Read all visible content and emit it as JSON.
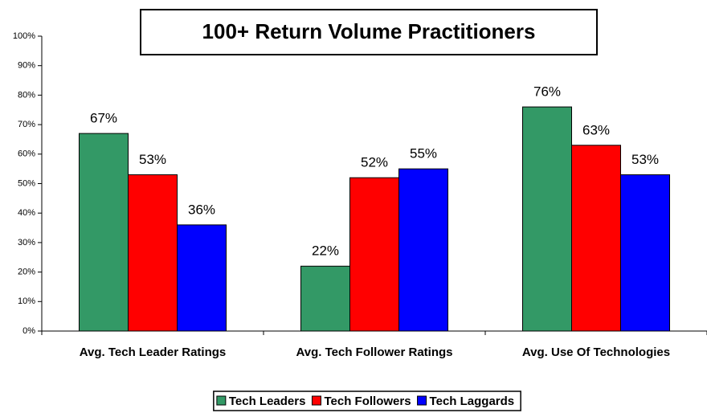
{
  "chart_data": {
    "type": "bar",
    "title": "100+ Return Volume Practitioners",
    "categories": [
      "Avg. Tech Leader Ratings",
      "Avg. Tech Follower Ratings",
      "Avg. Use Of Technologies"
    ],
    "series": [
      {
        "name": "Tech Leaders",
        "color": "#339966",
        "values": [
          67,
          22,
          76
        ],
        "value_labels": [
          "67%",
          "22%",
          "76%"
        ]
      },
      {
        "name": "Tech Followers",
        "color": "#ff0000",
        "values": [
          53,
          52,
          63
        ],
        "value_labels": [
          "53%",
          "52%",
          "63%"
        ]
      },
      {
        "name": "Tech Laggards",
        "color": "#0000ff",
        "values": [
          36,
          55,
          53
        ],
        "value_labels": [
          "36%",
          "55%",
          "53%"
        ]
      }
    ],
    "ylim": [
      0,
      100
    ],
    "yticks": [
      {
        "value": 0,
        "label": "0%"
      },
      {
        "value": 10,
        "label": "10%"
      },
      {
        "value": 20,
        "label": "20%"
      },
      {
        "value": 30,
        "label": "30%"
      },
      {
        "value": 40,
        "label": "40%"
      },
      {
        "value": 50,
        "label": "50%"
      },
      {
        "value": 60,
        "label": "60%"
      },
      {
        "value": 70,
        "label": "70%"
      },
      {
        "value": 80,
        "label": "80%"
      },
      {
        "value": 90,
        "label": "90%"
      },
      {
        "value": 100,
        "label": "100%"
      }
    ],
    "legend": "bottom"
  }
}
